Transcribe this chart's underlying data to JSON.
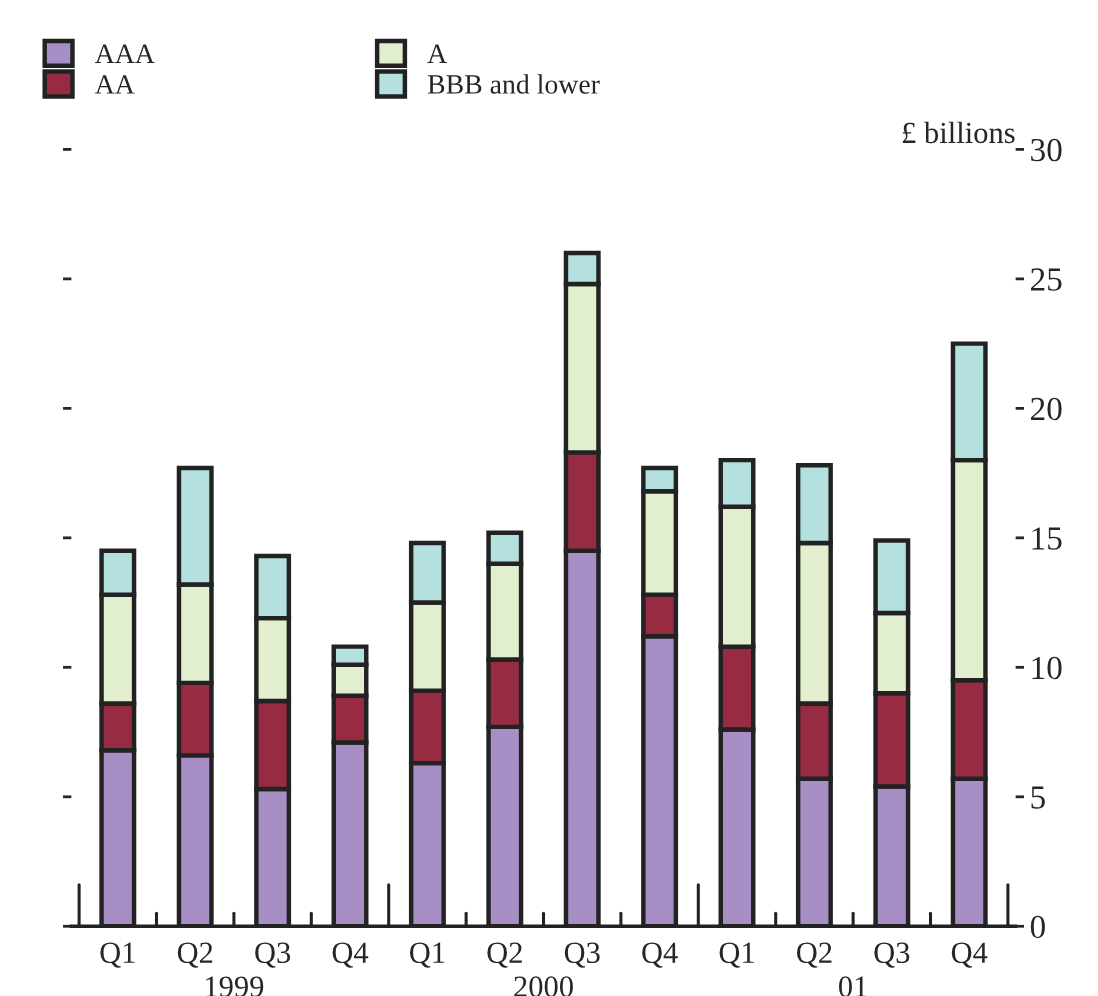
{
  "chart_data": {
    "type": "bar",
    "stacked": true,
    "categories": [
      "Q1",
      "Q2",
      "Q3",
      "Q4",
      "Q1",
      "Q2",
      "Q3",
      "Q4",
      "Q1",
      "Q2",
      "Q3",
      "Q4"
    ],
    "series": [
      {
        "name": "AAA",
        "color": "#a78ec4",
        "values": [
          6.8,
          6.6,
          5.3,
          7.1,
          6.3,
          7.7,
          14.5,
          11.2,
          7.6,
          5.7,
          5.4,
          5.7
        ]
      },
      {
        "name": "AA",
        "color": "#962b41",
        "values": [
          1.8,
          2.8,
          3.4,
          1.8,
          2.8,
          2.6,
          3.8,
          1.6,
          3.2,
          2.9,
          3.6,
          3.8
        ]
      },
      {
        "name": "A",
        "color": "#e2efcf",
        "values": [
          4.2,
          3.8,
          3.2,
          1.2,
          3.4,
          3.7,
          6.5,
          4.0,
          5.4,
          6.2,
          3.1,
          8.5
        ]
      },
      {
        "name": "BBB and lower",
        "color": "#b4e0e0",
        "values": [
          1.7,
          4.5,
          2.4,
          0.7,
          2.3,
          1.2,
          1.2,
          0.9,
          1.8,
          3.0,
          2.8,
          4.5
        ]
      }
    ],
    "ylabel": "£ billions",
    "ylim": [
      0,
      30
    ],
    "yticks": [
      0,
      5,
      10,
      15,
      20,
      25,
      30
    ],
    "annotations": [
      "1999",
      "2000",
      "01"
    ],
    "legend": "top left",
    "grid": false
  }
}
